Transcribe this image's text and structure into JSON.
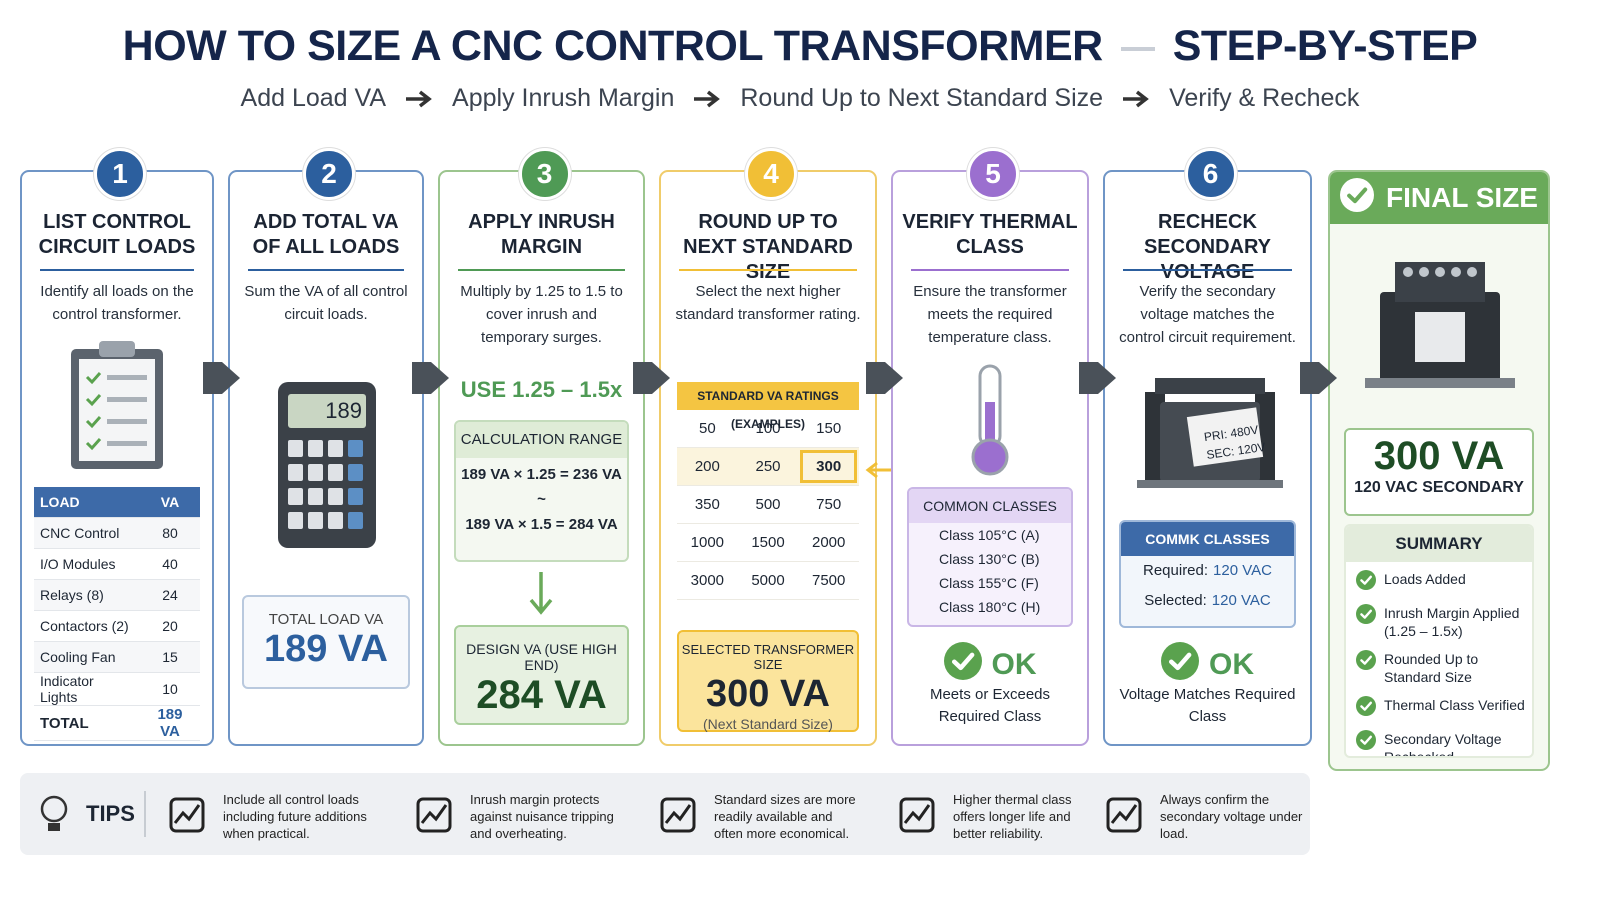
{
  "header": {
    "title": "HOW TO SIZE A CNC CONTROL TRANSFORMER",
    "title_tail": "STEP-BY-STEP",
    "flow": [
      "Add Load VA",
      "Apply Inrush Margin",
      "Round Up to Next Standard Size",
      "Verify & Recheck"
    ]
  },
  "steps": [
    {
      "number": "1",
      "title": "LIST CONTROL CIRCUIT LOADS",
      "description": "Identify all loads on the control transformer.",
      "table": {
        "header": [
          "LOAD",
          "VA"
        ],
        "rows": [
          [
            "CNC Control",
            "80"
          ],
          [
            "I/O Modules",
            "40"
          ],
          [
            "Relays (8)",
            "24"
          ],
          [
            "Contactors (2)",
            "20"
          ],
          [
            "Cooling Fan",
            "15"
          ],
          [
            "Indicator Lights",
            "10"
          ]
        ],
        "total": [
          "TOTAL",
          "189 VA"
        ]
      }
    },
    {
      "number": "2",
      "title": "ADD TOTAL VA OF ALL LOADS",
      "description": "Sum the VA of all control circuit loads.",
      "display": "189",
      "total_label": "TOTAL LOAD VA",
      "total_value": "189 VA"
    },
    {
      "number": "3",
      "title": "APPLY INRUSH MARGIN",
      "description": "Multiply by 1.25 to 1.5 to cover inrush and temporary surges.",
      "highlight": "USE 1.25 – 1.5x",
      "calc_title": "CALCULATION RANGE",
      "calc_lines": [
        "189 VA × 1.25 = 236 VA",
        "~",
        "189 VA × 1.5 = 284 VA"
      ],
      "design_label": "DESIGN VA (USE HIGH END)",
      "design_value": "284 VA"
    },
    {
      "number": "4",
      "title": "ROUND UP TO NEXT STANDARD SIZE",
      "description": "Select the next higher standard transformer rating.",
      "table_title": "STANDARD VA RATINGS (EXAMPLES)",
      "ratings": [
        [
          "50",
          "100",
          "150"
        ],
        [
          "200",
          "250",
          "300"
        ],
        [
          "350",
          "500",
          "750"
        ],
        [
          "1000",
          "1500",
          "2000"
        ],
        [
          "3000",
          "5000",
          "7500"
        ]
      ],
      "selected": "300",
      "selected_label": "SELECTED TRANSFORMER SIZE",
      "selected_value": "300 VA",
      "selected_note": "(Next Standard Size)"
    },
    {
      "number": "5",
      "title": "VERIFY THERMAL CLASS",
      "description": "Ensure the transformer meets the required temperature class.",
      "box_title": "COMMON CLASSES",
      "items": [
        "Class 105°C (A)",
        "Class 130°C (B)",
        "Class 155°C (F)",
        "Class 180°C (H)"
      ],
      "status": "OK",
      "note": "Meets or Exceeds Required Class"
    },
    {
      "number": "6",
      "title": "RECHECK SECONDARY VOLTAGE",
      "description": "Verify the secondary voltage matches the control circuit requirement.",
      "nameplate": [
        "PRI: 480V",
        "SEC: 120V"
      ],
      "box_title": "COMMK CLASSES",
      "checks": [
        [
          "Required:",
          "120 VAC"
        ],
        [
          "Selected:",
          "120 VAC"
        ]
      ],
      "status": "OK",
      "note": "Voltage Matches Required Class"
    }
  ],
  "final": {
    "title": "FINAL SIZE",
    "value": "300 VA",
    "subtitle": "120 VAC SECONDARY",
    "summary_title": "SUMMARY",
    "summary": [
      "Loads Added",
      "Inrush Margin Applied (1.25 – 1.5x)",
      "Rounded Up to Standard Size",
      "Thermal Class Verified",
      "Secondary Voltage Rechecked"
    ]
  },
  "tips": {
    "label": "TIPS",
    "items": [
      "Include all control loads including future additions when practical.",
      "Inrush margin protects against nuisance tripping and overheating.",
      "Standard sizes are more readily available and often more economical.",
      "Higher thermal class offers longer life and better reliability.",
      "Always confirm the secondary voltage under load."
    ]
  }
}
